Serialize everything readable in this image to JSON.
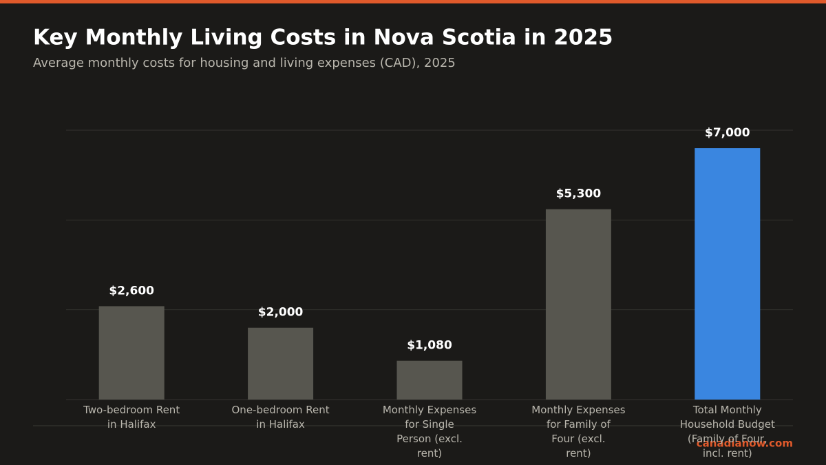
{
  "chart_data": {
    "type": "bar",
    "title": "Key Monthly Living Costs in Nova Scotia in 2025",
    "subtitle": "Average monthly costs for housing and living expenses (CAD), 2025",
    "categories": [
      "Two-bedroom Rent in Halifax",
      "One-bedroom Rent in Halifax",
      "Monthly Expenses for Single Person (excl. rent)",
      "Monthly Expenses for Family of Four (excl. rent)",
      "Total Monthly Household Budget (Family of Four, incl. rent)"
    ],
    "values": [
      2600,
      2000,
      1080,
      5300,
      7000
    ],
    "value_labels": [
      "$2,600",
      "$2,000",
      "$1,080",
      "$5,300",
      "$7,000"
    ],
    "colors": [
      "#57564f",
      "#57564f",
      "#57564f",
      "#57564f",
      "#3a86e0"
    ],
    "ylim": [
      0,
      7500
    ],
    "yticks": [
      0,
      2500,
      5000,
      7500
    ],
    "grid": true,
    "source": "canadianow.com"
  }
}
